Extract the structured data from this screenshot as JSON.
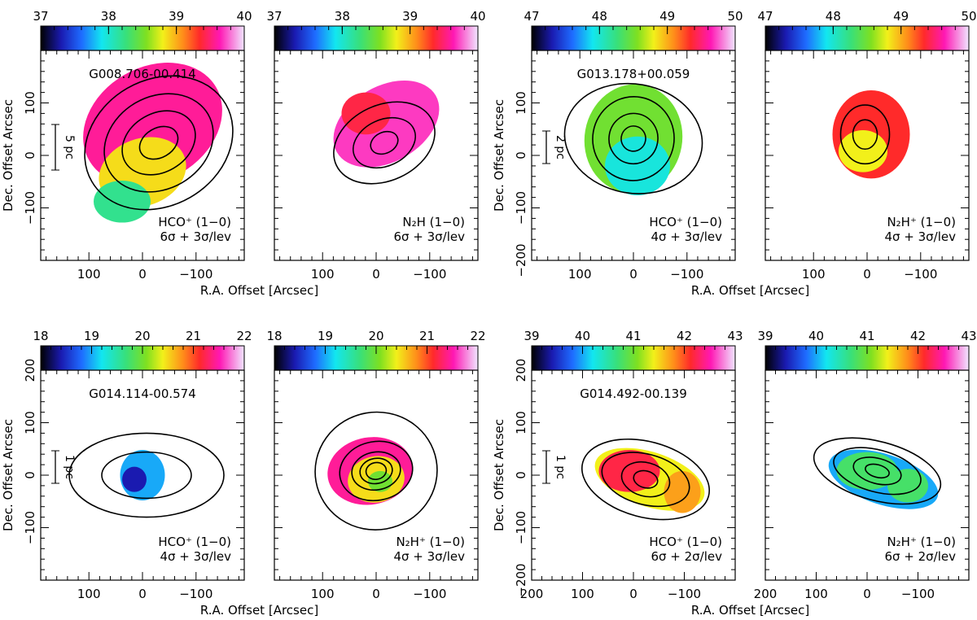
{
  "figure": {
    "common": {
      "xlabel": "R.A. Offset [Arcsec]",
      "ylabel": "Dec. Offset Arcsec"
    }
  },
  "chart_data": [
    {
      "type": "heatmap",
      "source": "G008.706-00.414",
      "panels": [
        {
          "line": "HCO⁺ (1−0)",
          "levels": "6σ + 3σ/lev",
          "show_source": true,
          "show_scale": true,
          "scale_label": "5 pc"
        },
        {
          "line": "N₂H (1−0)",
          "levels": "6σ + 3σ/lev",
          "show_source": false,
          "show_scale": false,
          "scale_label": ""
        }
      ],
      "colorbar": {
        "min": 37,
        "max": 40,
        "ticks": [
          "37",
          "38",
          "39",
          "40"
        ]
      },
      "xlim": [
        190,
        -190
      ],
      "ylim": [
        -200,
        200
      ],
      "xticks": [
        "100",
        "0",
        "−100"
      ],
      "yticks": [
        "100",
        "0",
        "−100"
      ]
    },
    {
      "type": "heatmap",
      "source": "G013.178+00.059",
      "panels": [
        {
          "line": "HCO⁺ (1−0)",
          "levels": "4σ + 3σ/lev",
          "show_source": true,
          "show_scale": true,
          "scale_label": "2 pc"
        },
        {
          "line": "N₂H⁺ (1−0)",
          "levels": "4σ + 3σ/lev",
          "show_source": false,
          "show_scale": false,
          "scale_label": ""
        }
      ],
      "colorbar": {
        "min": 47,
        "max": 50,
        "ticks": [
          "47",
          "48",
          "49",
          "50"
        ]
      },
      "xlim": [
        190,
        -190
      ],
      "ylim": [
        -200,
        200
      ],
      "xticks": [
        "100",
        "0",
        "−100"
      ],
      "yticks": [
        "100",
        "0",
        "−100",
        "−200"
      ]
    },
    {
      "type": "heatmap",
      "source": "G014.114-00.574",
      "panels": [
        {
          "line": "HCO⁺ (1−0)",
          "levels": "4σ + 3σ/lev",
          "show_source": true,
          "show_scale": true,
          "scale_label": "1 pc"
        },
        {
          "line": "N₂H⁺ (1−0)",
          "levels": "4σ + 3σ/lev",
          "show_source": false,
          "show_scale": false,
          "scale_label": ""
        }
      ],
      "colorbar": {
        "min": 18,
        "max": 22,
        "ticks": [
          "18",
          "19",
          "20",
          "21",
          "22"
        ]
      },
      "xlim": [
        190,
        -190
      ],
      "ylim": [
        -200,
        200
      ],
      "xticks": [
        "100",
        "0",
        "−100"
      ],
      "yticks": [
        "200",
        "100",
        "0",
        "−100"
      ]
    },
    {
      "type": "heatmap",
      "source": "G014.492-00.139",
      "panels": [
        {
          "line": "HCO⁺ (1−0)",
          "levels": "6σ + 2σ/lev",
          "show_source": true,
          "show_scale": true,
          "scale_label": "1 pc"
        },
        {
          "line": "N₂H⁺ (1−0)",
          "levels": "6σ + 2σ/lev",
          "show_source": false,
          "show_scale": false,
          "scale_label": ""
        }
      ],
      "colorbar": {
        "min": 39,
        "max": 43,
        "ticks": [
          "39",
          "40",
          "41",
          "42",
          "43"
        ]
      },
      "xlim": [
        200,
        -200
      ],
      "ylim": [
        -200,
        200
      ],
      "xticks": [
        "200",
        "100",
        "0",
        "−100"
      ],
      "yticks": [
        "200",
        "100",
        "0",
        "−100",
        "−200"
      ]
    }
  ]
}
